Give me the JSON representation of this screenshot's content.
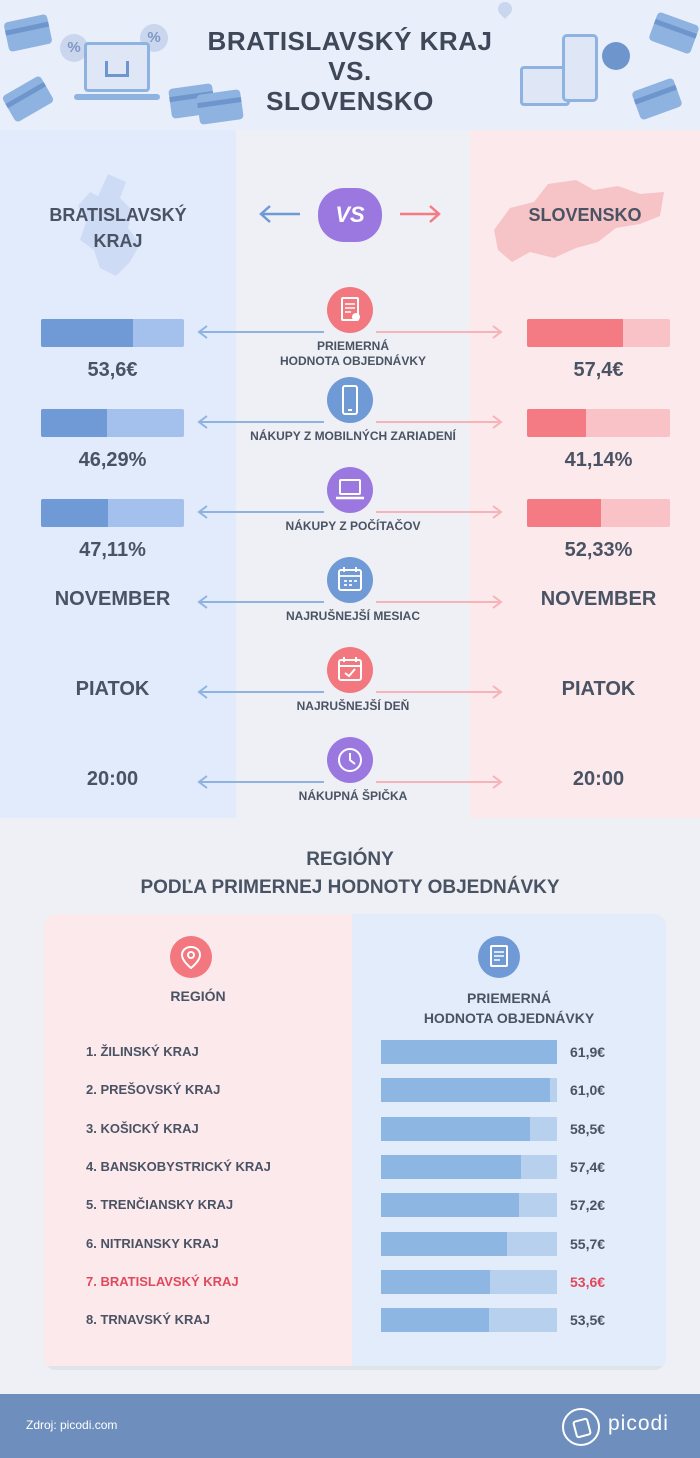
{
  "header": {
    "title_line1": "BRATISLAVSKÝ KRAJ",
    "title_line2": "VS.",
    "title_line3": "SLOVENSKO",
    "icons": [
      "credit-card-icon",
      "percent-badge-icon",
      "laptop-basket-icon",
      "map-pin-icon",
      "tablet-icon",
      "smartphone-icon",
      "hand-touch-icon"
    ]
  },
  "compare": {
    "left_title_line1": "BRATISLAVSKÝ",
    "left_title_line2": "KRAJ",
    "right_title": "SLOVENSKO",
    "vs_label": "VS",
    "colors": {
      "left": "#6f9ad6",
      "right": "#f47a83",
      "vs": "#9b78e0"
    },
    "metrics": [
      {
        "label_line1": "PRIEMERNÁ",
        "label_line2": "HODNOTA OBJEDNÁVKY",
        "icon": "receipt-icon",
        "left_value": "53,6€",
        "right_value": "57,4€",
        "left_fill": 0.64,
        "right_fill": 0.67
      },
      {
        "label_line1": "NÁKUPY Z MOBILNÝCH ZARIADENÍ",
        "label_line2": "",
        "icon": "smartphone-icon",
        "left_value": "46,29%",
        "right_value": "41,14%",
        "left_fill": 0.46,
        "right_fill": 0.41
      },
      {
        "label_line1": "NÁKUPY Z POČÍTAČOV",
        "label_line2": "",
        "icon": "laptop-icon",
        "left_value": "47,11%",
        "right_value": "52,33%",
        "left_fill": 0.47,
        "right_fill": 0.52
      },
      {
        "label_line1": "NAJRUŠNEJŠÍ MESIAC",
        "label_line2": "",
        "icon": "calendar-icon",
        "left_value": "NOVEMBER",
        "right_value": "NOVEMBER"
      },
      {
        "label_line1": "NAJRUŠNEJŠÍ DEŇ",
        "label_line2": "",
        "icon": "calendar-check-icon",
        "left_value": "PIATOK",
        "right_value": "PIATOK"
      },
      {
        "label_line1": "NÁKUPNÁ ŠPIČKA",
        "label_line2": "",
        "icon": "clock-icon",
        "left_value": "20:00",
        "right_value": "20:00"
      }
    ]
  },
  "regions": {
    "title_line1": "REGIÓNY",
    "title_line2": "PODĽA PRIMERNEJ HODNOTY OBJEDNÁVKY",
    "col_region": "REGIÓN",
    "col_value_line1": "PRIEMERNÁ",
    "col_value_line2": "HODNOTA OBJEDNÁVKY",
    "highlight_color": "#e0495c",
    "rows": [
      {
        "name": "1. ŽILINSKÝ KRAJ",
        "value": "61,9€",
        "amount": 61.9
      },
      {
        "name": "2. PREŠOVSKÝ KRAJ",
        "value": "61,0€",
        "amount": 61.0
      },
      {
        "name": "3. KOŠICKÝ KRAJ",
        "value": "58,5€",
        "amount": 58.5
      },
      {
        "name": "4. BANSKOBYSTRICKÝ KRAJ",
        "value": "57,4€",
        "amount": 57.4
      },
      {
        "name": "5. TRENČIANSKY KRAJ",
        "value": "57,2€",
        "amount": 57.2
      },
      {
        "name": "6. NITRIANSKY KRAJ",
        "value": "55,7€",
        "amount": 55.7
      },
      {
        "name": "7. BRATISLAVSKÝ KRAJ",
        "value": "53,6€",
        "amount": 53.6,
        "highlight": true
      },
      {
        "name": "8. TRNAVSKÝ KRAJ",
        "value": "53,5€",
        "amount": 53.5
      }
    ]
  },
  "footer": {
    "source": "Zdroj: picodi.com",
    "brand": "picodi"
  }
}
